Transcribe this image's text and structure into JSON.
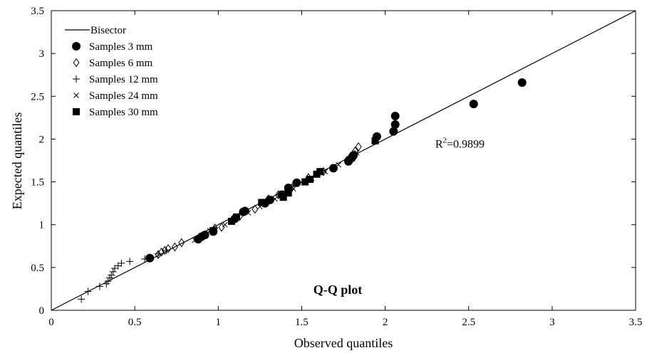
{
  "chart_data": {
    "type": "scatter",
    "title": "Q-Q plot",
    "xlabel": "Observed quantiles",
    "ylabel": "Expected quantiles",
    "xlim": [
      0,
      3.5
    ],
    "ylim": [
      0,
      3.5
    ],
    "xticks": [
      "0",
      "0.5",
      "1",
      "1.5",
      "2",
      "2.5",
      "3",
      "3.5"
    ],
    "yticks": [
      "0",
      "0.5",
      "1",
      "1.5",
      "2",
      "2.5",
      "3",
      "3.5"
    ],
    "grid": false,
    "legend_position": "top-left",
    "annotation": {
      "text": "R²=0.9899",
      "x": 2.3,
      "y": 1.9
    },
    "reference_line": {
      "name": "Bisector",
      "x": [
        0,
        3.5
      ],
      "y": [
        0,
        3.5
      ]
    },
    "series": [
      {
        "name": "Samples 3 mm",
        "marker": "filled-circle",
        "points": [
          [
            0.59,
            0.61
          ],
          [
            0.88,
            0.83
          ],
          [
            0.9,
            0.86
          ],
          [
            0.92,
            0.88
          ],
          [
            0.97,
            0.92
          ],
          [
            1.1,
            1.07
          ],
          [
            1.15,
            1.15
          ],
          [
            1.16,
            1.16
          ],
          [
            1.28,
            1.25
          ],
          [
            1.31,
            1.29
          ],
          [
            1.38,
            1.35
          ],
          [
            1.42,
            1.43
          ],
          [
            1.47,
            1.49
          ],
          [
            1.69,
            1.66
          ],
          [
            1.78,
            1.74
          ],
          [
            1.8,
            1.78
          ],
          [
            1.81,
            1.81
          ],
          [
            1.95,
            2.03
          ],
          [
            2.05,
            2.09
          ],
          [
            2.06,
            2.17
          ],
          [
            2.06,
            2.27
          ],
          [
            2.53,
            2.41
          ],
          [
            2.82,
            2.66
          ]
        ]
      },
      {
        "name": "Samples 6 mm",
        "marker": "diamond",
        "points": [
          [
            0.64,
            0.65
          ],
          [
            0.66,
            0.68
          ],
          [
            0.68,
            0.7
          ],
          [
            0.7,
            0.72
          ],
          [
            0.74,
            0.74
          ],
          [
            0.78,
            0.79
          ],
          [
            0.92,
            0.88
          ],
          [
            0.98,
            0.96
          ],
          [
            1.02,
            0.97
          ],
          [
            1.13,
            1.1
          ],
          [
            1.22,
            1.18
          ],
          [
            1.3,
            1.3
          ],
          [
            1.36,
            1.35
          ],
          [
            1.44,
            1.43
          ],
          [
            1.54,
            1.55
          ],
          [
            1.63,
            1.62
          ],
          [
            1.77,
            1.75
          ],
          [
            1.79,
            1.79
          ],
          [
            1.82,
            1.86
          ],
          [
            1.84,
            1.91
          ]
        ]
      },
      {
        "name": "Samples 12 mm",
        "marker": "plus",
        "points": [
          [
            0.18,
            0.13
          ],
          [
            0.22,
            0.22
          ],
          [
            0.29,
            0.28
          ],
          [
            0.33,
            0.31
          ],
          [
            0.34,
            0.34
          ],
          [
            0.35,
            0.38
          ],
          [
            0.36,
            0.41
          ],
          [
            0.37,
            0.45
          ],
          [
            0.38,
            0.49
          ],
          [
            0.4,
            0.52
          ],
          [
            0.42,
            0.55
          ],
          [
            0.47,
            0.57
          ],
          [
            0.56,
            0.6
          ],
          [
            0.64,
            0.66
          ],
          [
            0.69,
            0.7
          ]
        ]
      },
      {
        "name": "Samples 24 mm",
        "marker": "cross",
        "points": [
          [
            0.86,
            0.82
          ],
          [
            0.95,
            0.93
          ],
          [
            1.04,
            1.0
          ],
          [
            1.1,
            1.06
          ],
          [
            1.18,
            1.14
          ],
          [
            1.25,
            1.21
          ],
          [
            1.34,
            1.3
          ],
          [
            1.39,
            1.36
          ],
          [
            1.45,
            1.42
          ],
          [
            1.56,
            1.54
          ],
          [
            1.64,
            1.62
          ],
          [
            1.72,
            1.7
          ],
          [
            1.83,
            1.84
          ]
        ]
      },
      {
        "name": "Samples 30 mm",
        "marker": "filled-square",
        "points": [
          [
            0.97,
            0.93
          ],
          [
            1.08,
            1.04
          ],
          [
            1.11,
            1.09
          ],
          [
            1.26,
            1.26
          ],
          [
            1.39,
            1.32
          ],
          [
            1.42,
            1.37
          ],
          [
            1.52,
            1.5
          ],
          [
            1.55,
            1.53
          ],
          [
            1.59,
            1.59
          ],
          [
            1.61,
            1.62
          ],
          [
            1.94,
            1.98
          ]
        ]
      }
    ]
  }
}
